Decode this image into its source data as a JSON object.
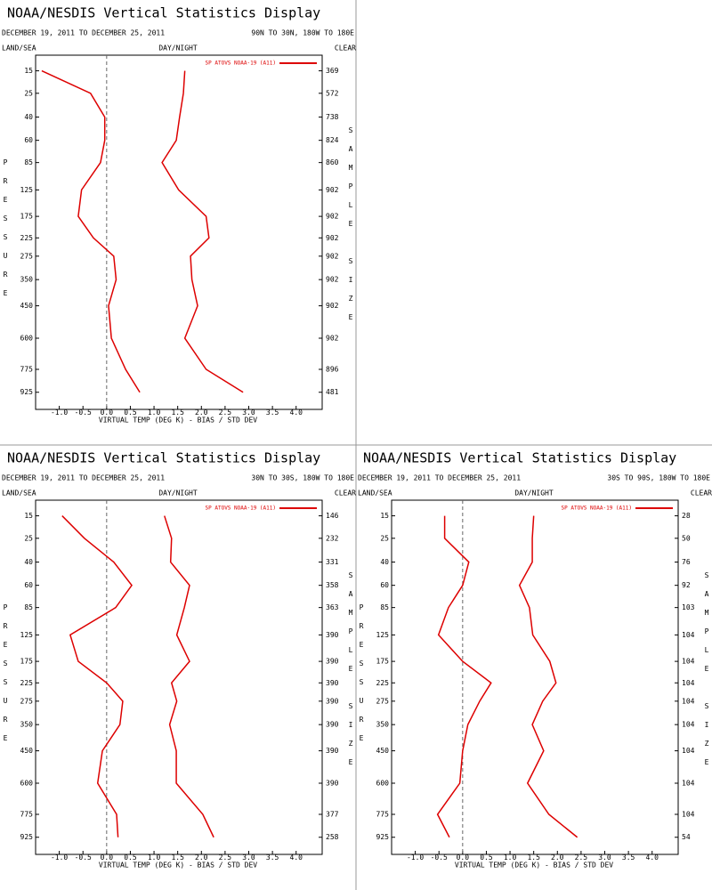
{
  "chart_data": [
    {
      "type": "line",
      "title": "NOAA/NESDIS Vertical Statistics Display",
      "subtitle": "DECEMBER 19, 2011 TO DECEMBER 25, 2011",
      "region": "90N TO 30N, 180W TO 180E",
      "left_label": "LAND/SEA",
      "center_label": "DAY/NIGHT",
      "right_label": "CLEAR",
      "ylabel": "PRESSURE",
      "y2label": "SAMPLE SIZE",
      "xlabel": "VIRTUAL TEMP (DEG K) - BIAS / STD DEV",
      "xlim": [
        -1.5,
        4.55
      ],
      "ylim": [
        10,
        1050
      ],
      "xticks": [
        {
          "value": -1,
          "label": "-1.0"
        },
        {
          "value": -0.5,
          "label": "-0.5"
        },
        {
          "value": 0,
          "label": "0.0"
        },
        {
          "value": 0.5,
          "label": "0.5"
        },
        {
          "value": 1,
          "label": "1.0"
        },
        {
          "value": 1.5,
          "label": "1.5"
        },
        {
          "value": 2,
          "label": "2.0"
        },
        {
          "value": 2.5,
          "label": "2.5"
        },
        {
          "value": 3,
          "label": "3.0"
        },
        {
          "value": 3.5,
          "label": "3.5"
        },
        {
          "value": 4,
          "label": "4.0"
        }
      ],
      "yticks": [
        15,
        25,
        40,
        60,
        85,
        125,
        175,
        225,
        275,
        350,
        450,
        600,
        775,
        925
      ],
      "sample_size": [
        369,
        572,
        738,
        824,
        860,
        902,
        902,
        902,
        902,
        902,
        902,
        902,
        896,
        481
      ],
      "series": [
        {
          "name": "SP ATOVS NOAA-19 (A11)",
          "color": "#dd0000",
          "bias": [
            -1.37,
            -0.34,
            -0.04,
            -0.04,
            -0.13,
            -0.53,
            -0.6,
            -0.28,
            0.15,
            0.2,
            0.04,
            0.1,
            0.4,
            0.7
          ],
          "std_dev": [
            1.65,
            1.62,
            1.54,
            1.47,
            1.17,
            1.52,
            2.1,
            2.16,
            1.77,
            1.8,
            1.92,
            1.65,
            2.1,
            2.88
          ]
        }
      ]
    },
    {
      "type": "line",
      "title": "NOAA/NESDIS Vertical Statistics Display",
      "subtitle": "DECEMBER 19, 2011 TO DECEMBER 25, 2011",
      "region": "30N TO 30S, 180W TO 180E",
      "left_label": "LAND/SEA",
      "center_label": "DAY/NIGHT",
      "right_label": "CLEAR",
      "ylabel": "PRESSURE",
      "y2label": "SAMPLE SIZE",
      "xlabel": "VIRTUAL TEMP (DEG K) - BIAS / STD DEV",
      "xlim": [
        -1.5,
        4.55
      ],
      "ylim": [
        10,
        1050
      ],
      "xticks": [
        {
          "value": -1,
          "label": "-1.0"
        },
        {
          "value": -0.5,
          "label": "-0.5"
        },
        {
          "value": 0,
          "label": "0.0"
        },
        {
          "value": 0.5,
          "label": "0.5"
        },
        {
          "value": 1,
          "label": "1.0"
        },
        {
          "value": 1.5,
          "label": "1.5"
        },
        {
          "value": 2,
          "label": "2.0"
        },
        {
          "value": 2.5,
          "label": "2.5"
        },
        {
          "value": 3,
          "label": "3.0"
        },
        {
          "value": 3.5,
          "label": "3.5"
        },
        {
          "value": 4,
          "label": "4.0"
        }
      ],
      "yticks": [
        15,
        25,
        40,
        60,
        85,
        125,
        175,
        225,
        275,
        350,
        450,
        600,
        775,
        925
      ],
      "sample_size": [
        146,
        232,
        331,
        358,
        363,
        390,
        390,
        390,
        390,
        390,
        390,
        390,
        377,
        258
      ],
      "series": [
        {
          "name": "SP ATOVS NOAA-19 (A11)",
          "color": "#dd0000",
          "bias": [
            -0.94,
            -0.47,
            0.15,
            0.53,
            0.19,
            -0.77,
            -0.6,
            0,
            0.34,
            0.28,
            -0.09,
            -0.19,
            0.21,
            0.24
          ],
          "std_dev": [
            1.22,
            1.37,
            1.35,
            1.75,
            1.64,
            1.48,
            1.75,
            1.37,
            1.48,
            1.33,
            1.47,
            1.47,
            2.03,
            2.26
          ]
        }
      ]
    },
    {
      "type": "line",
      "title": "NOAA/NESDIS Vertical Statistics Display",
      "subtitle": "DECEMBER 19, 2011 TO DECEMBER 25, 2011",
      "region": "30S TO 90S, 180W TO 180E",
      "left_label": "LAND/SEA",
      "center_label": "DAY/NIGHT",
      "right_label": "CLEAR",
      "ylabel": "PRESSURE",
      "y2label": "SAMPLE SIZE",
      "xlabel": "VIRTUAL TEMP (DEG K) - BIAS / STD DEV",
      "xlim": [
        -1.5,
        4.55
      ],
      "ylim": [
        10,
        1050
      ],
      "xticks": [
        {
          "value": -1,
          "label": "-1.0"
        },
        {
          "value": -0.5,
          "label": "-0.5"
        },
        {
          "value": 0,
          "label": "0.0"
        },
        {
          "value": 0.5,
          "label": "0.5"
        },
        {
          "value": 1,
          "label": "1.0"
        },
        {
          "value": 1.5,
          "label": "1.5"
        },
        {
          "value": 2,
          "label": "2.0"
        },
        {
          "value": 2.5,
          "label": "2.5"
        },
        {
          "value": 3,
          "label": "3.0"
        },
        {
          "value": 3.5,
          "label": "3.5"
        },
        {
          "value": 4,
          "label": "4.0"
        }
      ],
      "yticks": [
        15,
        25,
        40,
        60,
        85,
        125,
        175,
        225,
        275,
        350,
        450,
        600,
        775,
        925
      ],
      "sample_size": [
        28,
        50,
        76,
        92,
        103,
        104,
        104,
        104,
        104,
        104,
        104,
        104,
        104,
        54
      ],
      "series": [
        {
          "name": "SP ATOVS NOAA-19 (A11)",
          "color": "#dd0000",
          "bias": [
            -0.38,
            -0.38,
            0.13,
            0,
            -0.3,
            -0.51,
            0,
            0.6,
            0.36,
            0.11,
            0,
            -0.06,
            -0.53,
            -0.28
          ],
          "std_dev": [
            1.5,
            1.47,
            1.47,
            1.2,
            1.41,
            1.48,
            1.84,
            1.97,
            1.69,
            1.47,
            1.71,
            1.37,
            1.82,
            2.42
          ]
        }
      ]
    }
  ]
}
